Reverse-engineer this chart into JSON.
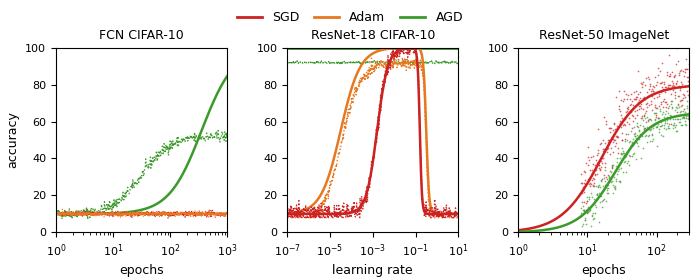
{
  "colors": {
    "SGD": "#cc2222",
    "Adam": "#e87820",
    "AGD": "#3a9a2a"
  },
  "legend_labels": [
    "SGD",
    "Adam",
    "AGD"
  ],
  "titles": [
    "FCN CIFAR-10",
    "ResNet-18 CIFAR-10",
    "ResNet-50 ImageNet"
  ],
  "xlabel_left": "epochs",
  "xlabel_mid": "learning rate",
  "xlabel_right": "epochs",
  "ylabel": "accuracy"
}
